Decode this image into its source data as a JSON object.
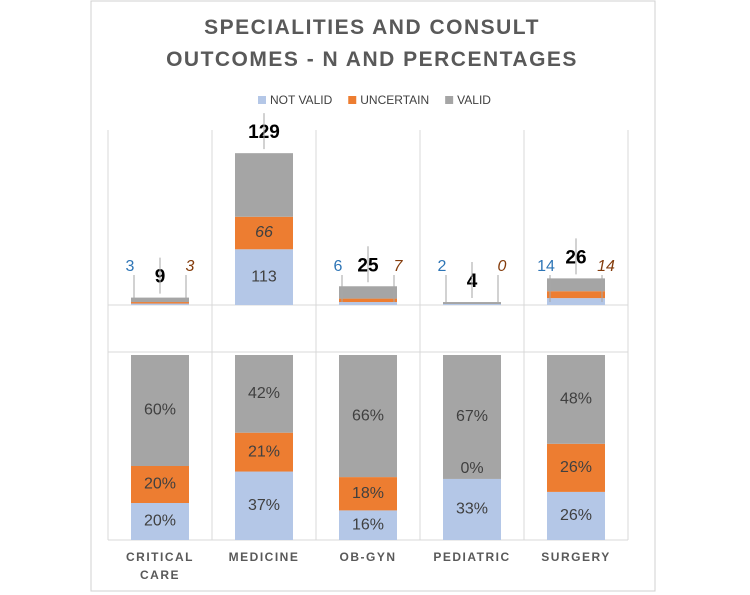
{
  "chart_data": [
    {
      "type": "bar",
      "stacked": true,
      "title": "SPECIALITIES AND CONSULT OUTCOMES - N AND PERCENTAGES",
      "series": [
        {
          "name": "NOT VALID",
          "color": "#b4c7e7",
          "values": [
            3,
            113,
            6,
            2,
            14
          ]
        },
        {
          "name": "UNCERTAIN",
          "color": "#ed7d31",
          "values": [
            3,
            66,
            7,
            0,
            14
          ]
        },
        {
          "name": "VALID",
          "color": "#a5a5a5",
          "values": [
            9,
            129,
            25,
            4,
            26
          ]
        }
      ],
      "ylim": [
        0,
        355
      ]
    },
    {
      "type": "bar",
      "stacked": true,
      "categories": [
        "CRITICAL CARE",
        "MEDICINE",
        "OB-GYN",
        "PEDIATRIC",
        "SURGERY"
      ],
      "series": [
        {
          "color": "#b4c7e7",
          "values": [
            20,
            37,
            16,
            33,
            26
          ],
          "value_labels": [
            "20%",
            "37%",
            "16%",
            "33%",
            "26%"
          ]
        },
        {
          "color": "#ed7d31",
          "values": [
            20,
            21,
            18,
            0,
            26
          ],
          "value_labels": [
            "20%",
            "21%",
            "18%",
            "0%",
            "26%"
          ]
        },
        {
          "color": "#a5a5a5",
          "values": [
            60,
            42,
            66,
            67,
            48
          ],
          "value_labels": [
            "60%",
            "42%",
            "66%",
            "67%",
            "48%"
          ]
        }
      ],
      "ylim": [
        0,
        100
      ]
    }
  ]
}
